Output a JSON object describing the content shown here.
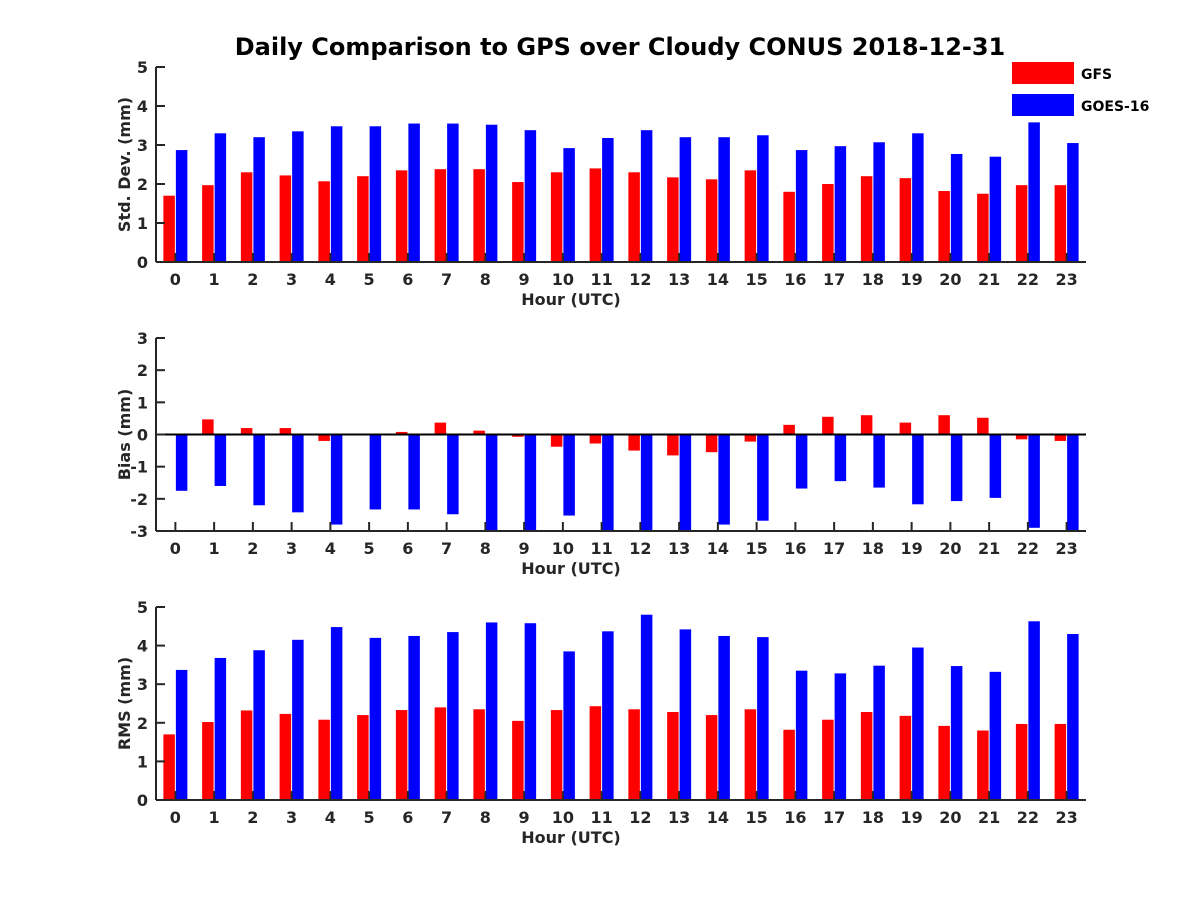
{
  "figure": {
    "title": "Daily Comparison to GPS over Cloudy CONUS 2018-12-31"
  },
  "legend": {
    "items": [
      {
        "label": "GFS",
        "color": "#ff0000"
      },
      {
        "label": "GOES-16",
        "color": "#0000ff"
      }
    ]
  },
  "chart_data": [
    {
      "type": "bar",
      "categories": [
        "0",
        "1",
        "2",
        "3",
        "4",
        "5",
        "6",
        "7",
        "8",
        "9",
        "10",
        "11",
        "12",
        "13",
        "14",
        "15",
        "16",
        "17",
        "18",
        "19",
        "20",
        "21",
        "22",
        "23"
      ],
      "xlabel": "Hour (UTC)",
      "ylabel": "Std. Dev. (mm)",
      "ylim": [
        0,
        5
      ],
      "yticks": [
        "0",
        "1",
        "2",
        "3",
        "4",
        "5"
      ],
      "series": [
        {
          "name": "GFS",
          "color": "#ff0000",
          "values": [
            1.7,
            1.97,
            2.3,
            2.22,
            2.07,
            2.2,
            2.35,
            2.38,
            2.38,
            2.05,
            2.3,
            2.4,
            2.3,
            2.17,
            2.12,
            2.35,
            1.8,
            2.0,
            2.2,
            2.15,
            1.82,
            1.75,
            1.97,
            1.97
          ]
        },
        {
          "name": "GOES-16",
          "color": "#0000ff",
          "values": [
            2.87,
            3.3,
            3.2,
            3.35,
            3.48,
            3.48,
            3.55,
            3.55,
            3.52,
            3.38,
            2.92,
            3.18,
            3.38,
            3.2,
            3.2,
            3.25,
            2.87,
            2.97,
            3.07,
            3.3,
            2.77,
            2.7,
            3.58,
            3.05
          ]
        }
      ]
    },
    {
      "type": "bar",
      "categories": [
        "0",
        "1",
        "2",
        "3",
        "4",
        "5",
        "6",
        "7",
        "8",
        "9",
        "10",
        "11",
        "12",
        "13",
        "14",
        "15",
        "16",
        "17",
        "18",
        "19",
        "20",
        "21",
        "22",
        "23"
      ],
      "xlabel": "Hour (UTC)",
      "ylabel": "Bias (mm)",
      "ylim": [
        -3,
        3
      ],
      "yticks": [
        "-3",
        "-2",
        "-1",
        "0",
        "1",
        "2",
        "3"
      ],
      "series": [
        {
          "name": "GFS",
          "color": "#ff0000",
          "values": [
            0,
            0.47,
            0.2,
            0.2,
            -0.2,
            0.02,
            0.08,
            0.37,
            0.12,
            -0.07,
            -0.38,
            -0.28,
            -0.5,
            -0.65,
            -0.55,
            -0.22,
            0.3,
            0.55,
            0.6,
            0.37,
            0.6,
            0.52,
            -0.15,
            -0.2
          ]
        },
        {
          "name": "GOES-16",
          "color": "#0000ff",
          "values": [
            -1.75,
            -1.6,
            -2.2,
            -2.42,
            -2.8,
            -2.33,
            -2.33,
            -2.48,
            -3,
            -3,
            -2.52,
            -3,
            -3,
            -3,
            -2.8,
            -2.68,
            -1.68,
            -1.45,
            -1.65,
            -2.17,
            -2.07,
            -1.97,
            -2.9,
            -3
          ]
        }
      ]
    },
    {
      "type": "bar",
      "categories": [
        "0",
        "1",
        "2",
        "3",
        "4",
        "5",
        "6",
        "7",
        "8",
        "9",
        "10",
        "11",
        "12",
        "13",
        "14",
        "15",
        "16",
        "17",
        "18",
        "19",
        "20",
        "21",
        "22",
        "23"
      ],
      "xlabel": "Hour (UTC)",
      "ylabel": "RMS (mm)",
      "ylim": [
        0,
        5
      ],
      "yticks": [
        "0",
        "1",
        "2",
        "3",
        "4",
        "5"
      ],
      "series": [
        {
          "name": "GFS",
          "color": "#ff0000",
          "values": [
            1.7,
            2.02,
            2.32,
            2.23,
            2.08,
            2.2,
            2.33,
            2.4,
            2.35,
            2.05,
            2.33,
            2.43,
            2.35,
            2.28,
            2.2,
            2.35,
            1.82,
            2.08,
            2.28,
            2.18,
            1.92,
            1.8,
            1.97,
            1.97
          ]
        },
        {
          "name": "GOES-16",
          "color": "#0000ff",
          "values": [
            3.37,
            3.68,
            3.88,
            4.15,
            4.48,
            4.2,
            4.25,
            4.35,
            4.6,
            4.58,
            3.85,
            4.37,
            4.8,
            4.42,
            4.25,
            4.22,
            3.35,
            3.28,
            3.48,
            3.95,
            3.47,
            3.32,
            4.63,
            4.3
          ]
        }
      ]
    }
  ]
}
